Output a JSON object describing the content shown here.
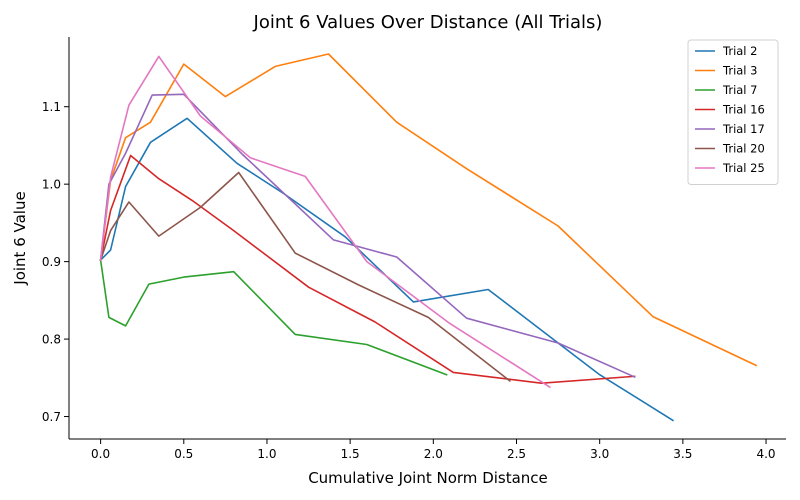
{
  "chart_data": {
    "type": "line",
    "title": "Joint 6 Values Over Distance (All Trials)",
    "xlabel": "Cumulative Joint Norm Distance",
    "ylabel": "Joint 6 Value",
    "xlim": [
      -0.19,
      4.12
    ],
    "ylim": [
      0.671,
      1.19
    ],
    "xticks": [
      0.0,
      0.5,
      1.0,
      1.5,
      2.0,
      2.5,
      3.0,
      3.5,
      4.0
    ],
    "xtick_labels": [
      "0.0",
      "0.5",
      "1.0",
      "1.5",
      "2.0",
      "2.5",
      "3.0",
      "3.5",
      "4.0"
    ],
    "yticks": [
      0.7,
      0.8,
      0.9,
      1.0,
      1.1
    ],
    "ytick_labels": [
      "0.7",
      "0.8",
      "0.9",
      "1.0",
      "1.1"
    ],
    "grid": false,
    "legend_position": "top-right",
    "series": [
      {
        "name": "Trial 2",
        "color": "#1f77b4",
        "x": [
          0.0,
          0.06,
          0.15,
          0.3,
          0.52,
          0.82,
          1.1,
          1.47,
          1.88,
          2.33,
          2.75,
          3.0,
          3.44
        ],
        "y": [
          0.902,
          0.915,
          0.997,
          1.054,
          1.085,
          1.027,
          0.988,
          0.932,
          0.848,
          0.864,
          0.795,
          0.754,
          0.695
        ]
      },
      {
        "name": "Trial 3",
        "color": "#ff7f0e",
        "x": [
          0.0,
          0.06,
          0.15,
          0.3,
          0.5,
          0.75,
          1.05,
          1.37,
          1.78,
          2.2,
          2.75,
          3.32,
          3.94
        ],
        "y": [
          0.902,
          1.005,
          1.06,
          1.08,
          1.155,
          1.113,
          1.152,
          1.168,
          1.08,
          1.02,
          0.946,
          0.829,
          0.766
        ]
      },
      {
        "name": "Trial 7",
        "color": "#2ca02c",
        "x": [
          0.0,
          0.05,
          0.15,
          0.29,
          0.5,
          0.8,
          1.17,
          1.6,
          2.08
        ],
        "y": [
          0.902,
          0.828,
          0.817,
          0.871,
          0.88,
          0.887,
          0.806,
          0.793,
          0.754
        ]
      },
      {
        "name": "Trial 16",
        "color": "#d62728",
        "x": [
          0.0,
          0.06,
          0.18,
          0.35,
          0.55,
          0.8,
          1.25,
          1.65,
          2.12,
          2.65,
          3.21
        ],
        "y": [
          0.902,
          0.966,
          1.037,
          1.007,
          0.979,
          0.94,
          0.867,
          0.822,
          0.757,
          0.743,
          0.752
        ]
      },
      {
        "name": "Trial 17",
        "color": "#9467bd",
        "x": [
          0.0,
          0.05,
          0.15,
          0.31,
          0.5,
          0.85,
          1.4,
          1.78,
          2.2,
          2.75,
          3.21
        ],
        "y": [
          0.902,
          1.0,
          1.04,
          1.115,
          1.116,
          1.039,
          0.928,
          0.906,
          0.827,
          0.795,
          0.751
        ]
      },
      {
        "name": "Trial 20",
        "color": "#8c564b",
        "x": [
          0.0,
          0.06,
          0.17,
          0.35,
          0.6,
          0.83,
          1.17,
          1.55,
          1.97,
          2.46
        ],
        "y": [
          0.902,
          0.94,
          0.977,
          0.933,
          0.97,
          1.015,
          0.911,
          0.87,
          0.828,
          0.746
        ]
      },
      {
        "name": "Trial 25",
        "color": "#e377c2",
        "x": [
          0.0,
          0.06,
          0.17,
          0.35,
          0.6,
          0.9,
          1.23,
          1.6,
          2.1,
          2.7
        ],
        "y": [
          0.902,
          1.009,
          1.102,
          1.165,
          1.088,
          1.034,
          1.01,
          0.9,
          0.82,
          0.738
        ]
      }
    ]
  }
}
